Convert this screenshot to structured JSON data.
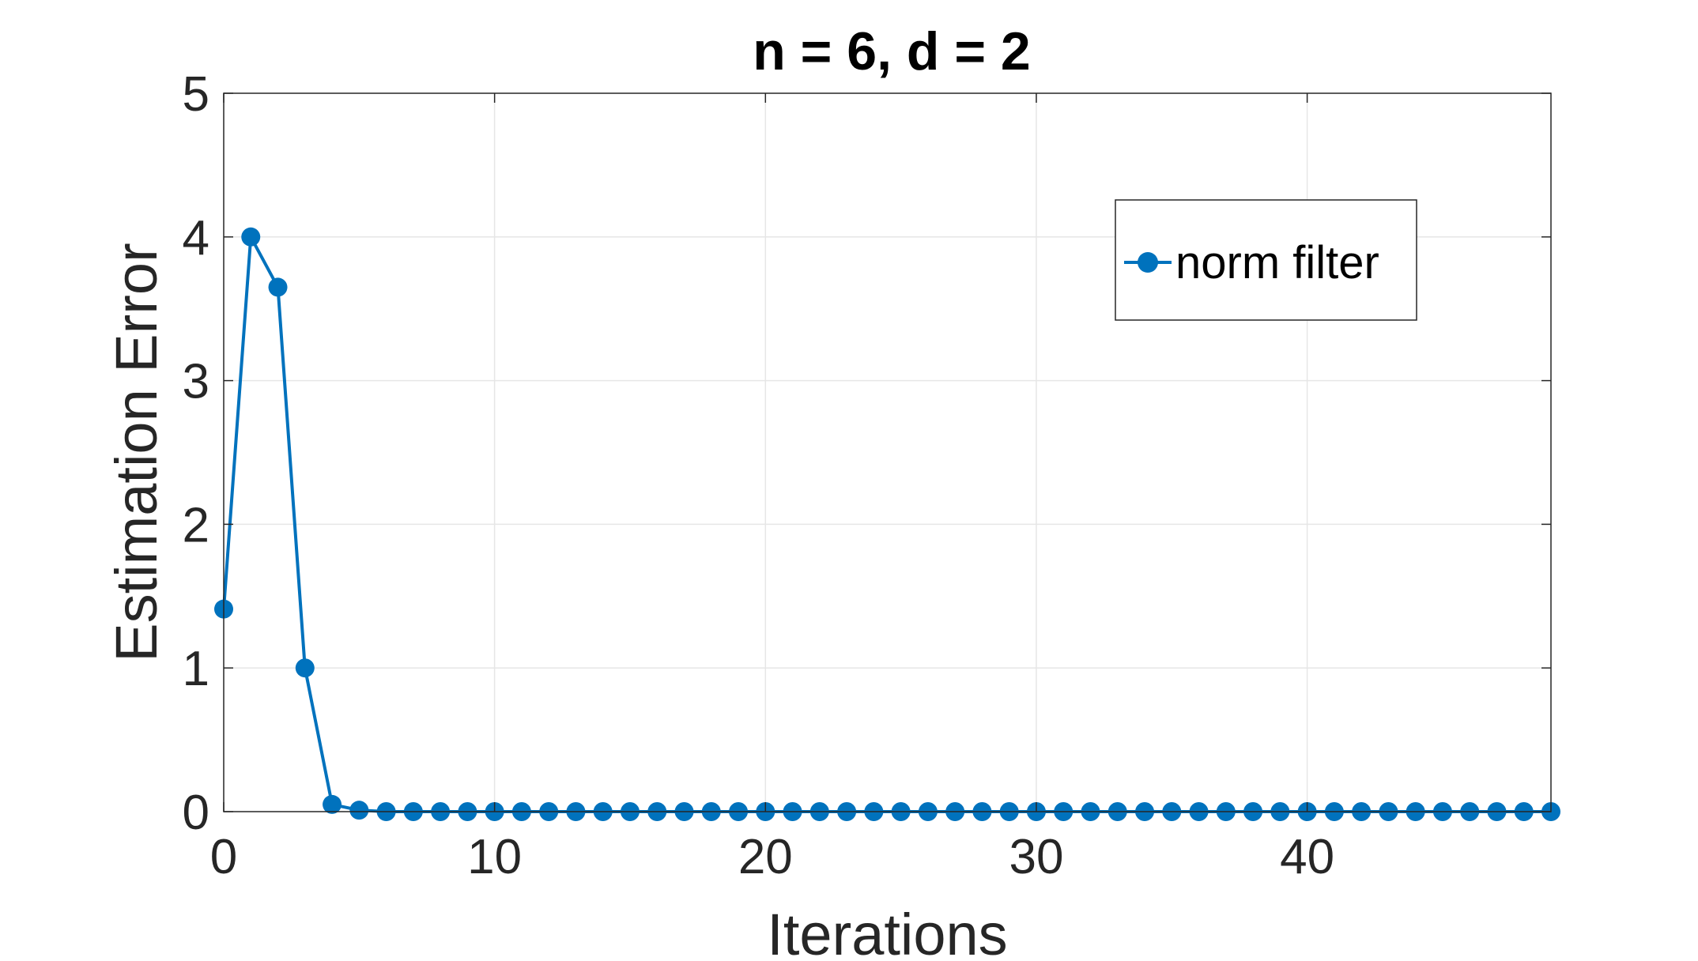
{
  "chart_data": {
    "type": "line",
    "title": "n = 6, d = 2",
    "xlabel": "Iterations",
    "ylabel": "Estimation Error",
    "xlim": [
      0,
      49
    ],
    "ylim": [
      0,
      5
    ],
    "xticks": [
      0,
      10,
      20,
      30,
      40
    ],
    "yticks": [
      0,
      1,
      2,
      3,
      4,
      5
    ],
    "grid": true,
    "legend_position": "top-right",
    "series": [
      {
        "name": "norm filter",
        "color": "#0072BD",
        "marker": "circle",
        "x": [
          0,
          1,
          2,
          3,
          4,
          5,
          6,
          7,
          8,
          9,
          10,
          11,
          12,
          13,
          14,
          15,
          16,
          17,
          18,
          19,
          20,
          21,
          22,
          23,
          24,
          25,
          26,
          27,
          28,
          29,
          30,
          31,
          32,
          33,
          34,
          35,
          36,
          37,
          38,
          39,
          40,
          41,
          42,
          43,
          44,
          45,
          46,
          47,
          48,
          49
        ],
        "y": [
          1.41,
          4.0,
          3.65,
          1.0,
          0.05,
          0.01,
          0,
          0,
          0,
          0,
          0,
          0,
          0,
          0,
          0,
          0,
          0,
          0,
          0,
          0,
          0,
          0,
          0,
          0,
          0,
          0,
          0,
          0,
          0,
          0,
          0,
          0,
          0,
          0,
          0,
          0,
          0,
          0,
          0,
          0,
          0,
          0,
          0,
          0,
          0,
          0,
          0,
          0,
          0,
          0
        ]
      }
    ]
  }
}
